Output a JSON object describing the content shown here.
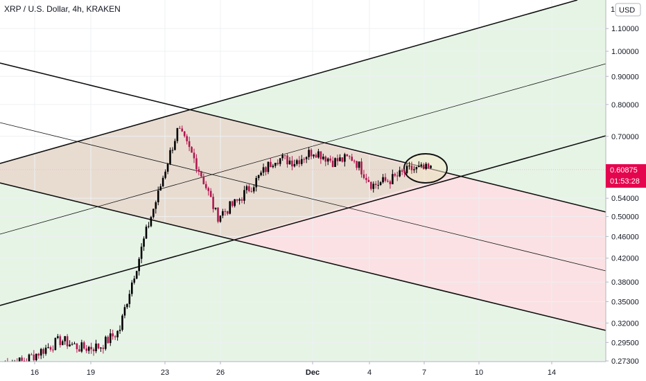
{
  "header": {
    "symbol_title": "XRP / U.S. Dollar, 4h, KRAKEN",
    "currency_button": "USD",
    "scale_label": "1"
  },
  "price_axis": {
    "labels": [
      "1.10000",
      "1.00000",
      "0.90000",
      "0.80000",
      "0.70000",
      "0.54000",
      "0.50000",
      "0.46000",
      "0.42000",
      "0.38000",
      "0.35000",
      "0.32000",
      "0.29500",
      "0.27300"
    ]
  },
  "time_axis": {
    "labels": [
      "16",
      "19",
      "23",
      "26",
      "Dec",
      "4",
      "7",
      "10",
      "14"
    ]
  },
  "price_badge": {
    "price": "0.60875",
    "countdown": "01:53:28",
    "color": "#e5054f"
  },
  "colors": {
    "up_candle": "#000000",
    "down_candle": "#b0174f",
    "upper_channel_fill": "#e6f4e6",
    "lower_channel_fill": "#fbe1e3",
    "overlap_fill": "#e8dcd1",
    "highlight_ellipse_fill": "#f4e7c8"
  },
  "chart_data": {
    "type": "candlestick",
    "title": "XRP / U.S. Dollar, 4h, KRAKEN",
    "x_ticks": [
      "16",
      "19",
      "23",
      "26",
      "Dec",
      "4",
      "7",
      "10",
      "14"
    ],
    "y_ticks": [
      1.1,
      1.0,
      0.9,
      0.8,
      0.7,
      0.54,
      0.5,
      0.46,
      0.42,
      0.38,
      0.35,
      0.32,
      0.295,
      0.273
    ],
    "ylim": [
      0.26,
      1.2
    ],
    "y_scale": "log",
    "last_price": 0.60875,
    "series": [
      {
        "name": "",
        "close_path": [
          {
            "x": "Nov 15",
            "y": 0.27
          },
          {
            "x": "Nov 16",
            "y": 0.272
          },
          {
            "x": "Nov 17",
            "y": 0.285
          },
          {
            "x": "Nov 18",
            "y": 0.298
          },
          {
            "x": "Nov 19",
            "y": 0.288
          },
          {
            "x": "Nov 20",
            "y": 0.29
          },
          {
            "x": "Nov 21",
            "y": 0.31
          },
          {
            "x": "Nov 22",
            "y": 0.42
          },
          {
            "x": "Nov 23",
            "y": 0.55
          },
          {
            "x": "Nov 24",
            "y": 0.72
          },
          {
            "x": "Nov 25",
            "y": 0.62
          },
          {
            "x": "Nov 26",
            "y": 0.5
          },
          {
            "x": "Nov 27",
            "y": 0.53
          },
          {
            "x": "Nov 28",
            "y": 0.58
          },
          {
            "x": "Nov 29",
            "y": 0.64
          },
          {
            "x": "Nov 30",
            "y": 0.63
          },
          {
            "x": "Dec 1",
            "y": 0.66
          },
          {
            "x": "Dec 2",
            "y": 0.63
          },
          {
            "x": "Dec 3",
            "y": 0.64
          },
          {
            "x": "Dec 4",
            "y": 0.57
          },
          {
            "x": "Dec 5",
            "y": 0.585
          },
          {
            "x": "Dec 6",
            "y": 0.61
          },
          {
            "x": "Dec 7",
            "y": 0.6087
          }
        ]
      }
    ],
    "annotations": [
      "ascending channel (green band)",
      "descending channel (red band)",
      "circled apex near Dec 7"
    ]
  }
}
